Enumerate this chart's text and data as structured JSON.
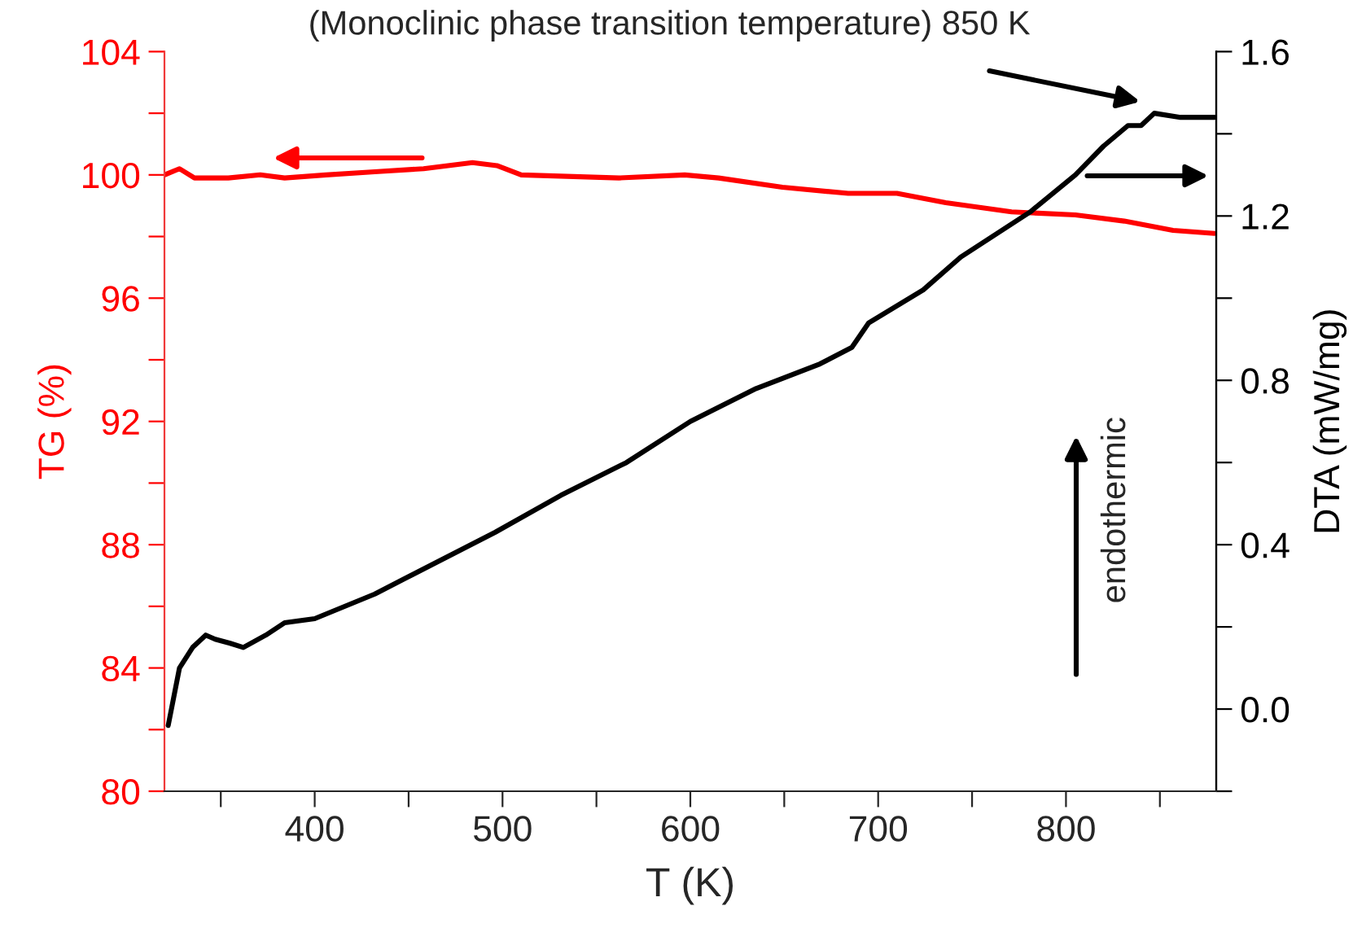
{
  "chart_data": {
    "type": "line",
    "xlabel": "T (K)",
    "ylabel": "TG (%)",
    "y2label": "DTA (mW/mg)",
    "xlim": [
      320,
      880
    ],
    "xticks": [
      {
        "value": 350,
        "label": null
      },
      400,
      {
        "value": 450,
        "label": null
      },
      500,
      {
        "value": 550,
        "label": null
      },
      600,
      {
        "value": 650,
        "label": null
      },
      700,
      {
        "value": 750,
        "label": null
      },
      800,
      {
        "value": 850,
        "label": null
      }
    ],
    "ylim": [
      80,
      104
    ],
    "yticks": [
      80,
      {
        "value": 82,
        "label": null
      },
      84,
      {
        "value": 86,
        "label": null
      },
      88,
      {
        "value": 90,
        "label": null
      },
      92,
      {
        "value": 94,
        "label": null
      },
      96,
      {
        "value": 98,
        "label": null
      },
      100,
      {
        "value": 102,
        "label": null
      },
      104
    ],
    "y2lim": [
      -0.2,
      1.6
    ],
    "y2ticks": [
      {
        "value": -0.2,
        "label": null
      },
      {
        "value": 0.0,
        "label": "0.0"
      },
      {
        "value": 0.2,
        "label": null
      },
      {
        "value": 0.4,
        "label": "0.4"
      },
      {
        "value": 0.6,
        "label": null
      },
      {
        "value": 0.8,
        "label": "0.8"
      },
      {
        "value": 1.0,
        "label": null
      },
      {
        "value": 1.2,
        "label": "1.2"
      },
      {
        "value": 1.4,
        "label": null
      },
      {
        "value": 1.6,
        "label": "1.6"
      }
    ],
    "grid": false,
    "legend": false,
    "line_style": "solid",
    "series": [
      {
        "color": "#ff0000",
        "axis": "y",
        "x": [
          320,
          328,
          336,
          354,
          371,
          384,
          406,
          432,
          458,
          484,
          497,
          510,
          562,
          597,
          615,
          649,
          684,
          710,
          736,
          771,
          805,
          831,
          857,
          879
        ],
        "values": [
          100.0,
          100.2,
          99.9,
          99.9,
          100.0,
          99.9,
          100.0,
          100.1,
          100.2,
          100.4,
          100.3,
          100.0,
          99.9,
          100.0,
          99.9,
          99.6,
          99.4,
          99.4,
          99.1,
          98.8,
          98.7,
          98.5,
          98.2,
          98.1
        ]
      },
      {
        "color": "#000000",
        "axis": "y2",
        "x": [
          322,
          328,
          335,
          342,
          347,
          355,
          362,
          374,
          384,
          400,
          432,
          449,
          496,
          531,
          566,
          600,
          635,
          669,
          686,
          695,
          724,
          744,
          781,
          805,
          820,
          833,
          840,
          847,
          861,
          870,
          879
        ],
        "values": [
          -0.04,
          0.1,
          0.15,
          0.18,
          0.17,
          0.16,
          0.15,
          0.18,
          0.21,
          0.22,
          0.28,
          0.32,
          0.43,
          0.52,
          0.6,
          0.7,
          0.78,
          0.84,
          0.88,
          0.94,
          1.02,
          1.1,
          1.21,
          1.3,
          1.37,
          1.42,
          1.42,
          1.45,
          1.44,
          1.44,
          1.44
        ]
      }
    ],
    "annotations": [
      "(Monoclinic phase transition temperature) 850 K",
      "endothermic"
    ]
  }
}
